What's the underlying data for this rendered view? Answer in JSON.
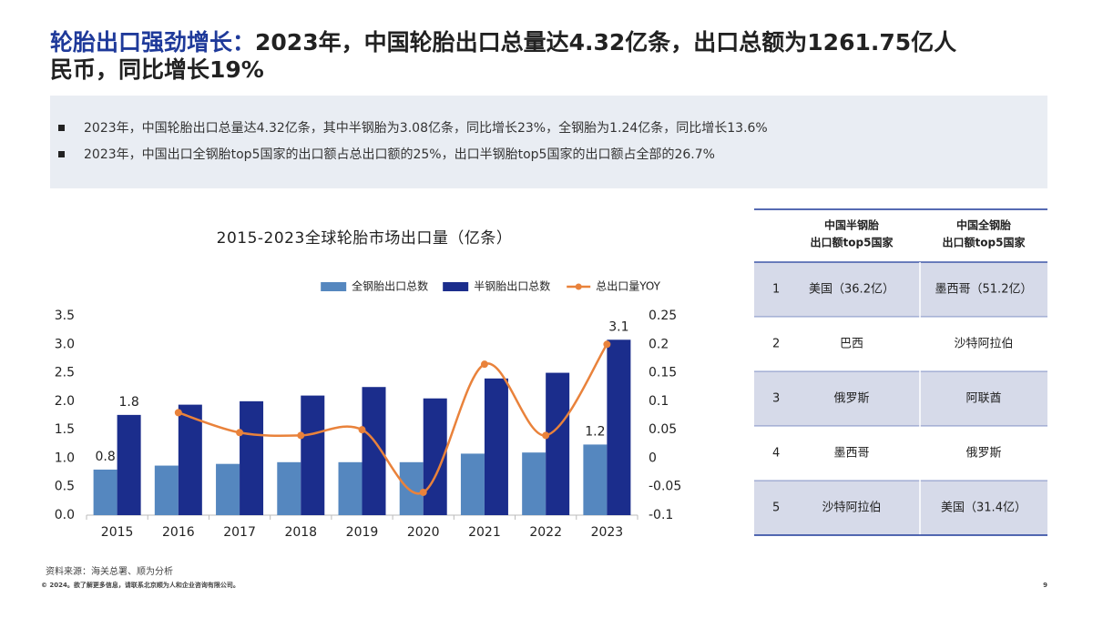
{
  "header": {
    "title_lead": "轮胎出口强劲增长：",
    "title_lines": [
      "2023年，中国轮胎出口总量达4.32亿条，出口总额为1261.75亿人",
      "民币，同比增长19%"
    ]
  },
  "bullets": [
    "2023年，中国轮胎出口总量达4.32亿条，其中半钢胎为3.08亿条，同比增长23%，全钢胎为1.24亿条，同比增长13.6%",
    "2023年，中国出口全钢胎top5国家的出口额占总出口额的25%，出口半钢胎top5国家的出口额占全部的26.7%"
  ],
  "chart_data": {
    "type": "bar",
    "title": "2015-2023全球轮胎市场出口量（亿条）",
    "categories": [
      "2015",
      "2016",
      "2017",
      "2018",
      "2019",
      "2020",
      "2021",
      "2022",
      "2023"
    ],
    "series": [
      {
        "name": "全钢胎出口总数",
        "color": "#5587bf",
        "values": [
          0.8,
          0.87,
          0.9,
          0.93,
          0.93,
          0.93,
          1.08,
          1.1,
          1.24
        ],
        "value_labels": [
          "0.8",
          null,
          null,
          null,
          null,
          null,
          null,
          null,
          "1.2"
        ]
      },
      {
        "name": "半钢胎出口总数",
        "color": "#1b2d8c",
        "values": [
          1.76,
          1.94,
          2.0,
          2.1,
          2.25,
          2.05,
          2.4,
          2.5,
          3.08
        ],
        "value_labels": [
          "1.8",
          null,
          null,
          null,
          null,
          null,
          null,
          null,
          "3.1"
        ]
      },
      {
        "name": "总出口量YOY",
        "type": "line",
        "axis": "y2",
        "color": "#e9823b",
        "values": [
          null,
          0.08,
          0.045,
          0.04,
          0.05,
          -0.06,
          0.165,
          0.04,
          0.2
        ]
      }
    ],
    "ylim": [
      0,
      3.5
    ],
    "yticks": [
      {
        "value": 0,
        "label": "0.0"
      },
      0.5,
      {
        "value": 1,
        "label": "1.0"
      },
      1.5,
      {
        "value": 2,
        "label": "2.0"
      },
      2.5,
      {
        "value": 3,
        "label": "3.0"
      },
      3.5
    ],
    "y2lim": [
      -0.1,
      0.25
    ],
    "y2ticks": [
      -0.1,
      -0.05,
      0,
      0.05,
      0.1,
      0.15,
      0.2,
      0.25
    ],
    "grid": false,
    "legend": "top-right"
  },
  "table": {
    "headers": [
      [
        "中国半钢胎",
        "出口额top5国家"
      ],
      [
        "中国全钢胎",
        "出口额top5国家"
      ]
    ],
    "rows": [
      [
        "1",
        "美国（36.2亿）",
        "墨西哥（51.2亿）"
      ],
      [
        "2",
        "巴西",
        "沙特阿拉伯"
      ],
      [
        "3",
        "俄罗斯",
        "阿联酋"
      ],
      [
        "4",
        "墨西哥",
        "俄罗斯"
      ],
      [
        "5",
        "沙特阿拉伯",
        "美国（31.4亿）"
      ]
    ]
  },
  "footer": {
    "source": "资料来源：海关总署、顺为分析",
    "copyright": "© 2024。欲了解更多信息，请联系北京顺为人和企业咨询有限公司。",
    "page": "9"
  }
}
